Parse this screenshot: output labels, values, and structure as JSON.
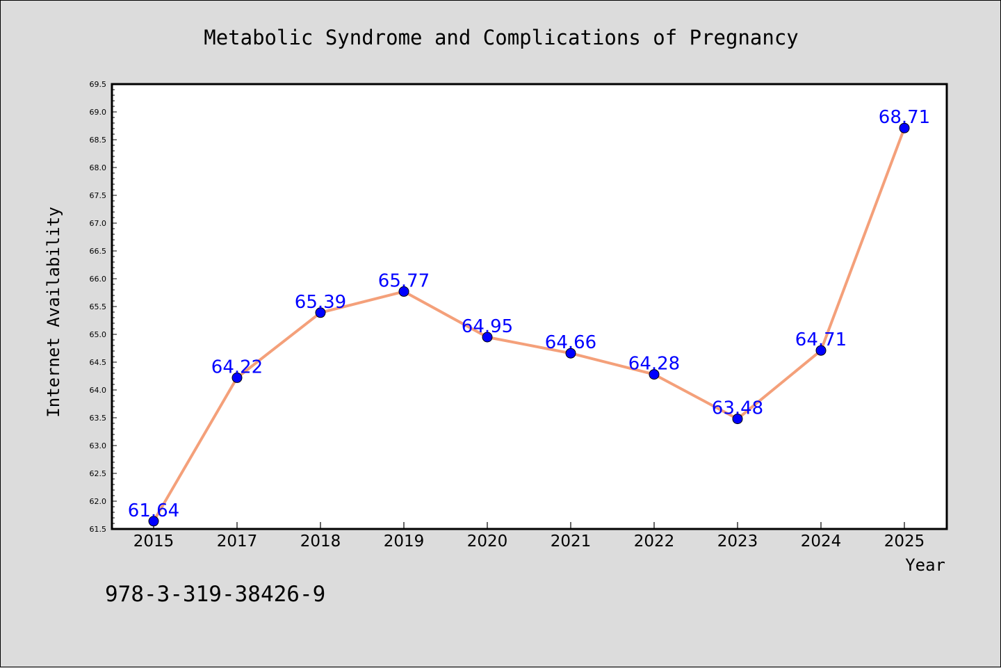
{
  "chart_data": {
    "type": "line",
    "title": "Metabolic Syndrome and Complications of Pregnancy",
    "xlabel": "Year",
    "ylabel": "Internet Availability",
    "categories": [
      "2015",
      "2017",
      "2018",
      "2019",
      "2020",
      "2021",
      "2022",
      "2023",
      "2024",
      "2025"
    ],
    "series": [
      {
        "values": [
          61.64,
          64.22,
          65.39,
          65.77,
          64.95,
          64.66,
          64.28,
          63.48,
          64.71,
          68.71
        ]
      }
    ],
    "data_labels": [
      "61.64",
      "64.22",
      "65.39",
      "65.77",
      "64.95",
      "64.66",
      "64.28",
      "63.48",
      "64.71",
      "68.71"
    ],
    "ylim": [
      61.5,
      69.5
    ],
    "yticks": [
      "61.5",
      "62.0",
      "62.5",
      "63.0",
      "63.5",
      "64.0",
      "64.5",
      "65.0",
      "65.5",
      "66.0",
      "66.5",
      "67.0",
      "67.5",
      "68.0",
      "68.5",
      "69.0",
      "69.5"
    ],
    "grid": false,
    "legend": "none",
    "colors": {
      "line": "#f4a07a",
      "marker": "#0000ff",
      "data_label": "#0000ff",
      "background": "#dcdcdc",
      "plot_area": "#ffffff"
    }
  },
  "footer": {
    "text": "978-3-319-38426-9"
  }
}
